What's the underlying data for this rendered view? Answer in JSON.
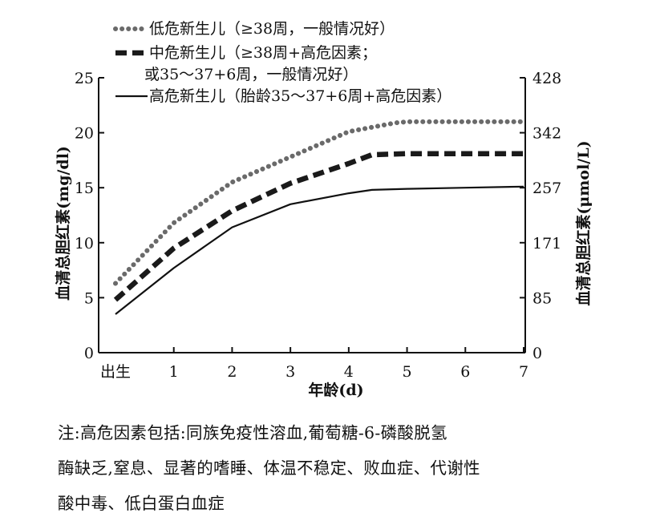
{
  "chart_data": {
    "type": "line",
    "x_tick_labels": [
      "出生",
      "1",
      "2",
      "3",
      "4",
      "5",
      "6",
      "7"
    ],
    "xlabel": "年龄(d)",
    "ylabel_left": "血清总胆红素(mg/dl)",
    "ylabel_right": "血清总胆红素(μmol/L)",
    "ylim": [
      0,
      25
    ],
    "xlim": [
      0,
      7
    ],
    "y_ticks_left": [
      "0",
      "5",
      "10",
      "15",
      "20",
      "25"
    ],
    "y_ticks_right": [
      "0",
      "85",
      "171",
      "257",
      "342",
      "428"
    ],
    "y_ticks_right_values": [
      0,
      5,
      10,
      15,
      20,
      25
    ],
    "legend_position": "top",
    "series": [
      {
        "name": "低危新生儿（≥38周，一般情况好）",
        "style": "dotted",
        "color": "#6a6a6a",
        "x": [
          0,
          1,
          2,
          3,
          4,
          4.8,
          5,
          6,
          7
        ],
        "y": [
          6.3,
          11.8,
          15.5,
          17.8,
          20.1,
          20.9,
          21,
          21,
          21
        ]
      },
      {
        "name": "中危新生儿（≥38周+高危因素；或35～37+6周，一般情况好）",
        "style": "dashed",
        "color": "#1a1a1a",
        "x": [
          0,
          1,
          2,
          3,
          4,
          4.4,
          5,
          6,
          7
        ],
        "y": [
          4.8,
          9.5,
          12.9,
          15.4,
          17.2,
          18,
          18.1,
          18.1,
          18.1
        ]
      },
      {
        "name": "高危新生儿（胎龄35～37+6周+高危因素）",
        "style": "solid",
        "color": "#111111",
        "x": [
          0,
          1,
          2,
          3,
          4,
          4.4,
          5,
          6,
          7
        ],
        "y": [
          3.5,
          7.7,
          11.4,
          13.5,
          14.5,
          14.8,
          14.9,
          15,
          15.1
        ]
      }
    ]
  },
  "note": {
    "lines": [
      "注:高危因素包括:同族免疫性溶血,葡萄糖-6-磷酸脱氢",
      "酶缺乏,窒息、显著的嗜睡、体温不稳定、败血症、代谢性",
      "酸中毒、低白蛋白血症"
    ]
  }
}
